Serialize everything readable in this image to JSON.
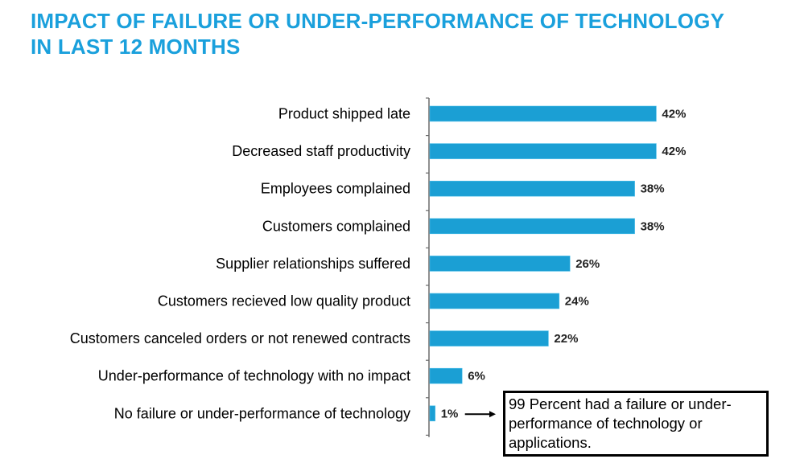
{
  "title": {
    "line1": "IMPACT OF FAILURE OR UNDER-PERFORMANCE OF TECHNOLOGY",
    "line2": "IN LAST 12 MONTHS"
  },
  "colors": {
    "title": "#1aa0dc",
    "bar": "#1b9fd4",
    "bar_edge": "#4fc0ea",
    "axis": "#6b6b6b",
    "text": "#000000"
  },
  "chart_data": {
    "type": "bar",
    "orientation": "horizontal",
    "categories": [
      "Product shipped late",
      "Decreased staff productivity",
      "Employees complained",
      "Customers complained",
      "Supplier relationships suffered",
      "Customers recieved low quality product",
      "Customers canceled orders or not renewed contracts",
      "Under-performance of technology with no impact",
      "No failure or under-performance of technology"
    ],
    "values": [
      42,
      42,
      38,
      38,
      26,
      24,
      22,
      6,
      1
    ],
    "value_labels": [
      "42%",
      "42%",
      "38%",
      "38%",
      "26%",
      "24%",
      "22%",
      "6%",
      "1%"
    ],
    "unit": "%",
    "title": "IMPACT OF FAILURE OR UNDER-PERFORMANCE OF TECHNOLOGY IN LAST 12 MONTHS",
    "grid": false,
    "legend": "none"
  },
  "callout": {
    "text": "99 Percent had a failure or under-performance of technology or applications.",
    "points_to": "1%"
  }
}
